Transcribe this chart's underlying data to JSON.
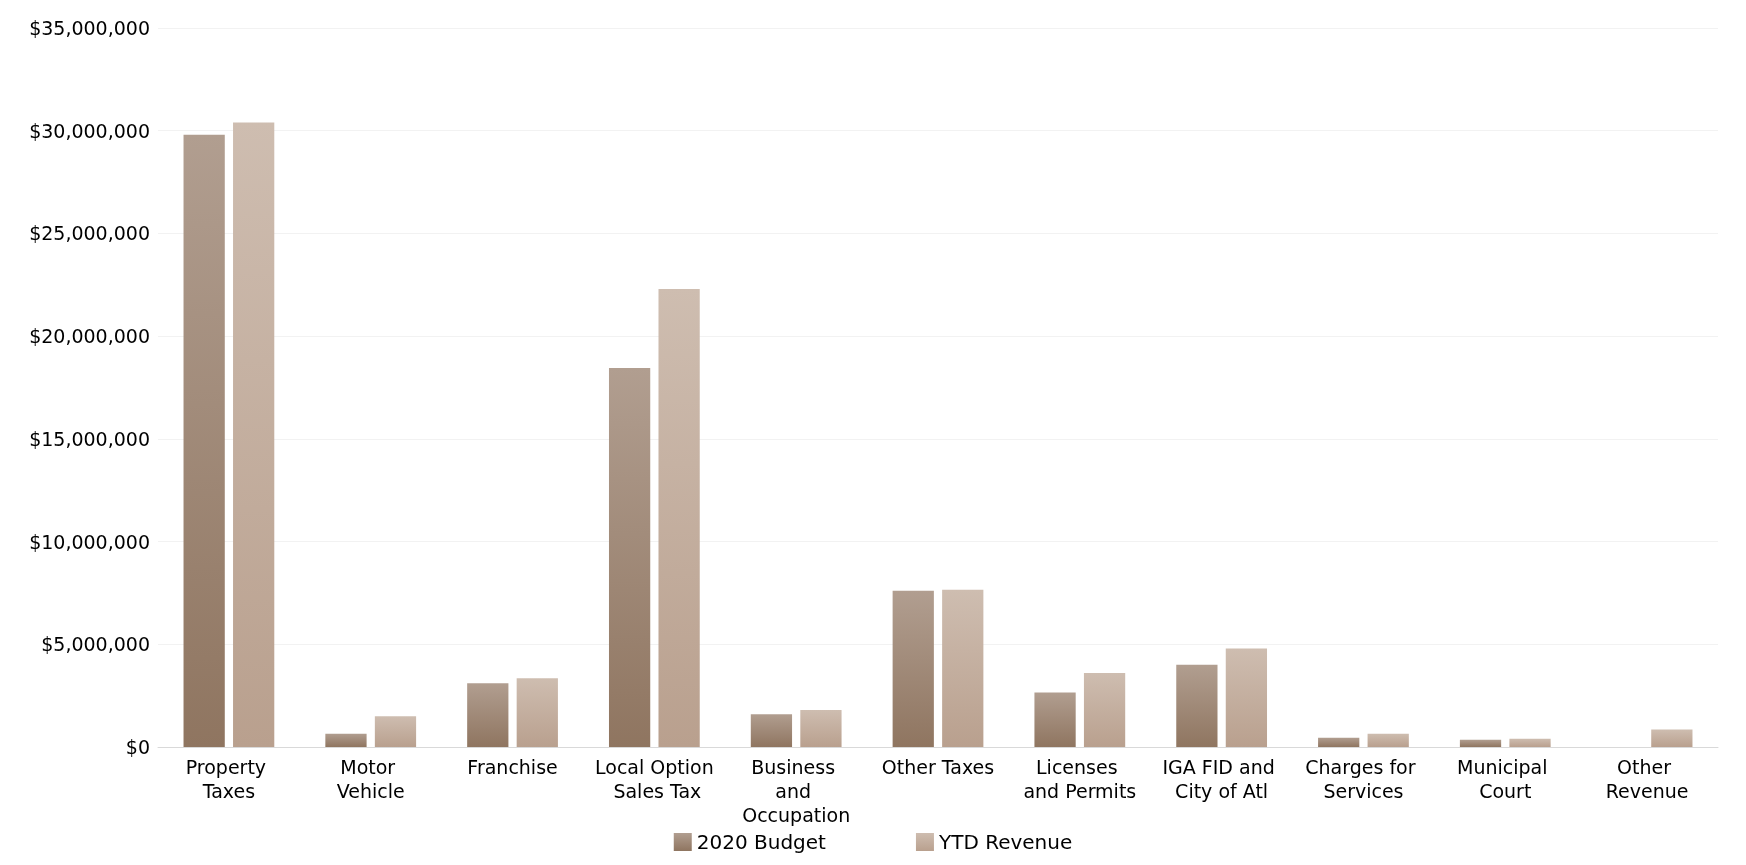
{
  "chart_data": {
    "type": "bar",
    "categories": [
      "Property Taxes",
      "Motor Vehicle",
      "Franchise",
      "Local Option Sales Tax",
      "Business and Occupation",
      "Other Taxes",
      "Licenses and Permits",
      "IGA FID and City of Atl",
      "Charges for Services",
      "Municipal Court",
      "Other Revenue"
    ],
    "series": [
      {
        "name": "2020 Budget",
        "color": "#8f7560",
        "values": [
          29800000,
          650000,
          3100000,
          18450000,
          1600000,
          7600000,
          2650000,
          4000000,
          450000,
          350000,
          0
        ]
      },
      {
        "name": "YTD Revenue",
        "color": "#b9a08e",
        "values": [
          30400000,
          1500000,
          3350000,
          22300000,
          1800000,
          7650000,
          3600000,
          4800000,
          650000,
          400000,
          850000
        ]
      }
    ],
    "ylim": [
      0,
      35000000
    ],
    "yticks": [
      {
        "value": 0,
        "label": "$0"
      },
      {
        "value": 5000000,
        "label": "$5,000,000"
      },
      {
        "value": 10000000,
        "label": "$10,000,000"
      },
      {
        "value": 15000000,
        "label": "$15,000,000"
      },
      {
        "value": 20000000,
        "label": "$20,000,000"
      },
      {
        "value": 25000000,
        "label": "$25,000,000"
      },
      {
        "value": 30000000,
        "label": "$30,000,000"
      },
      {
        "value": 35000000,
        "label": "$35,000,000"
      }
    ],
    "grid": "y",
    "legend": "bottom"
  }
}
